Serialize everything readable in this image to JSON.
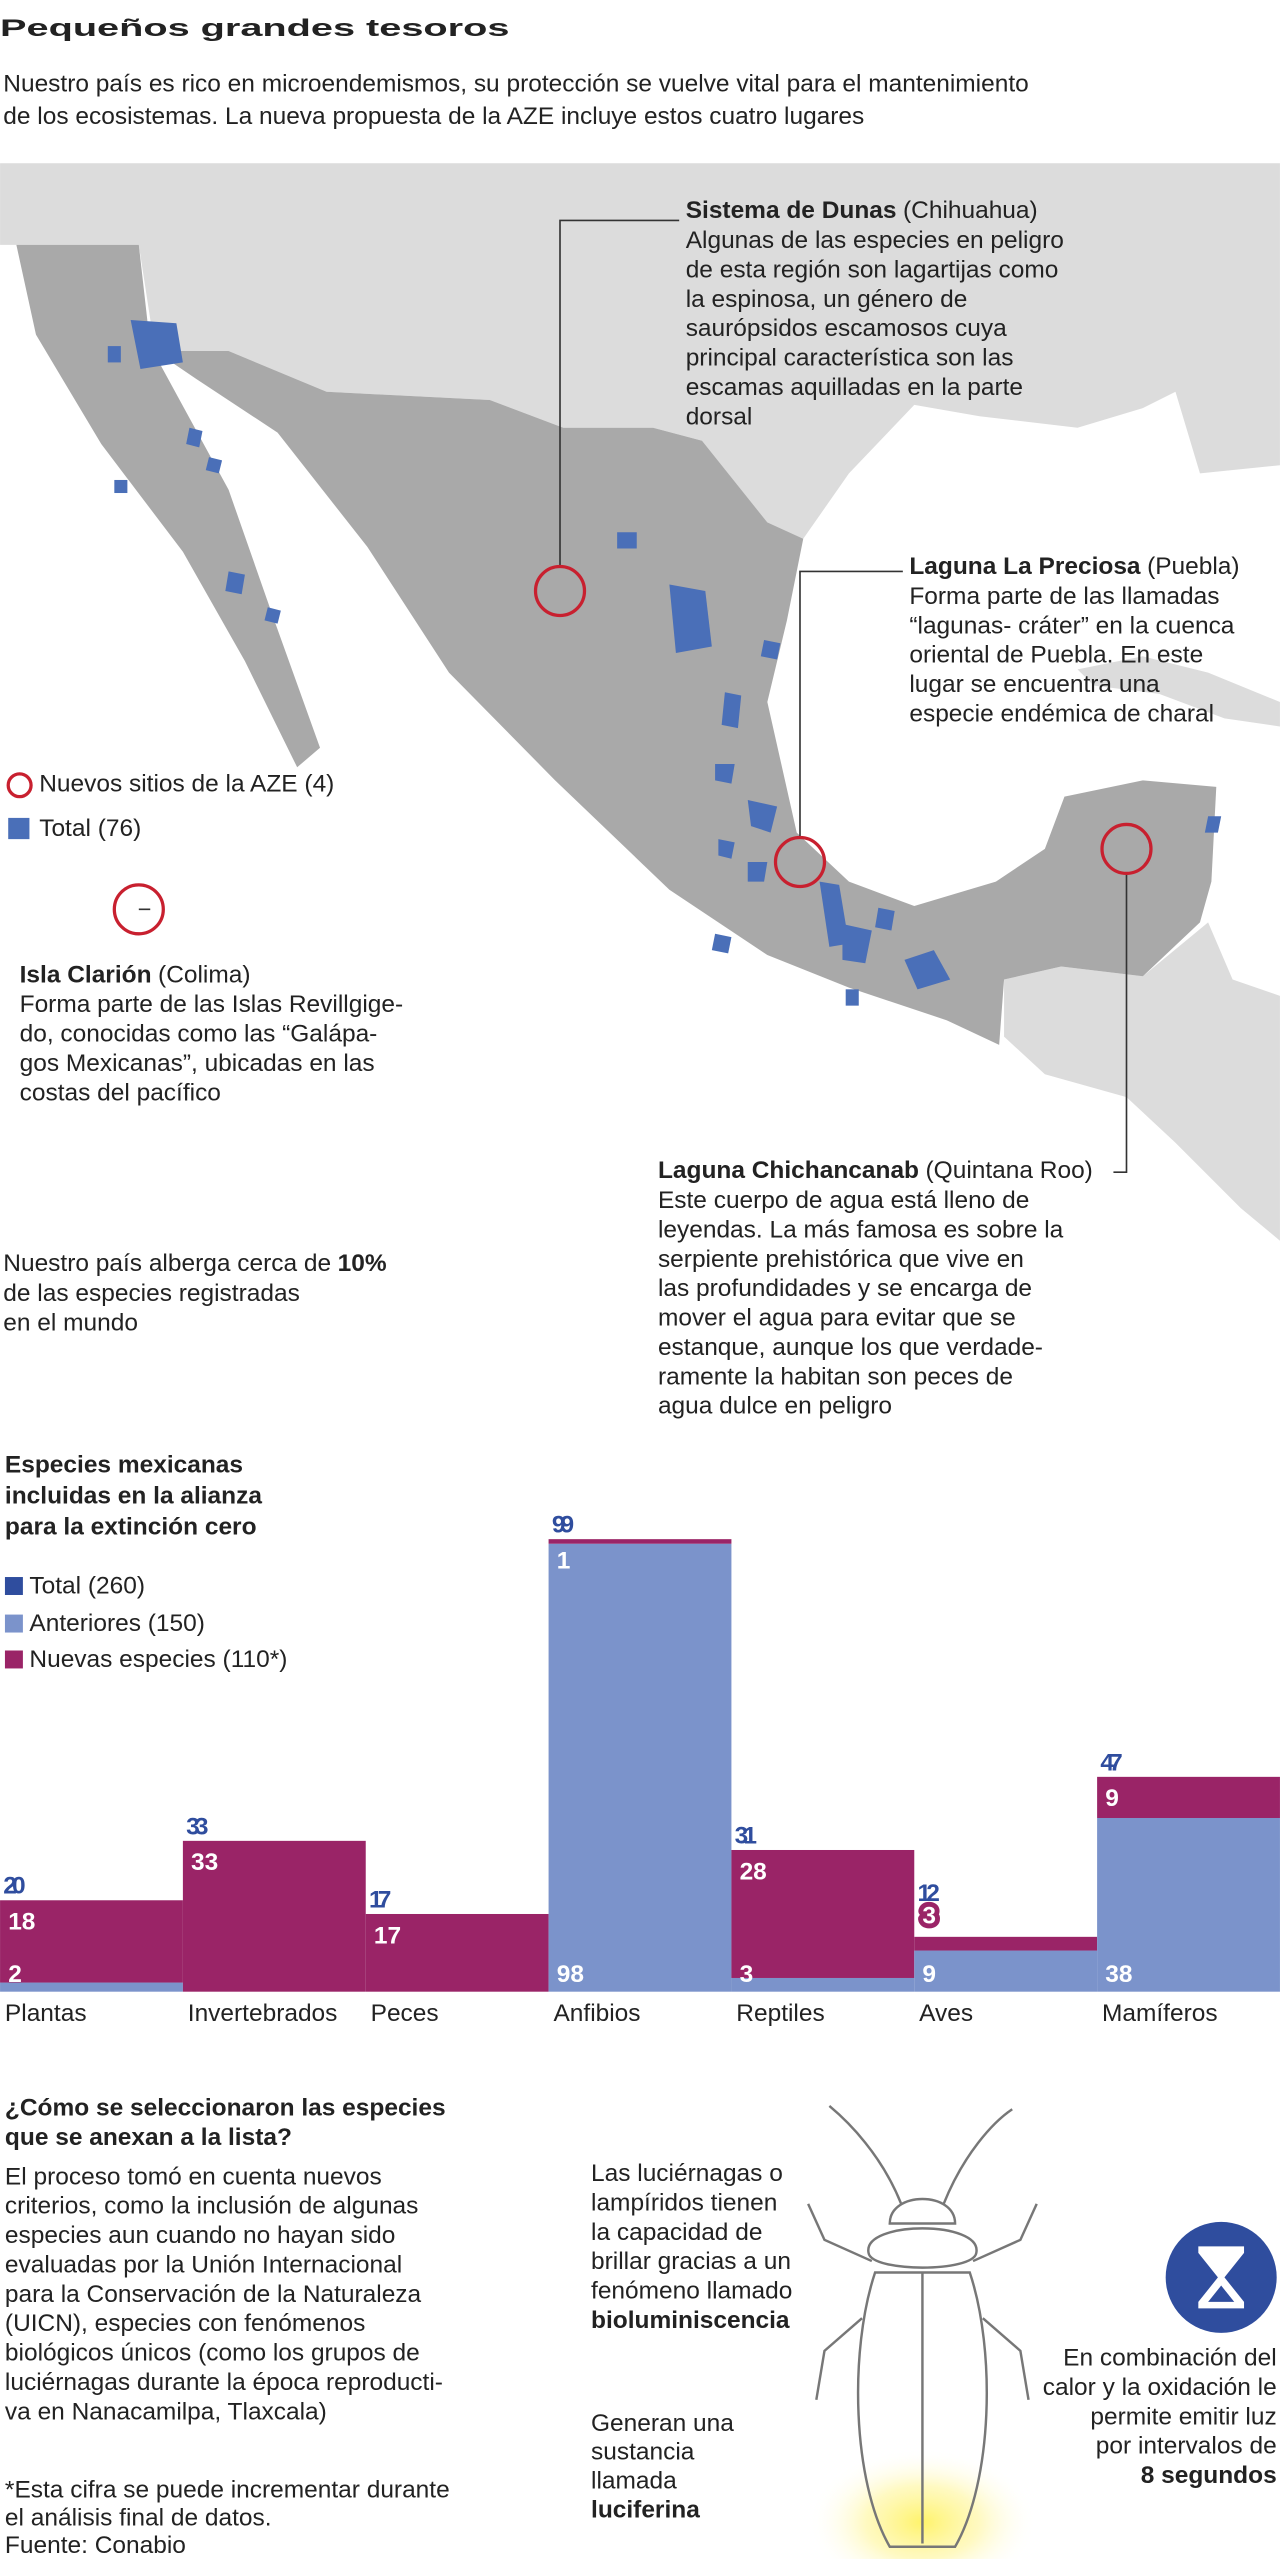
{
  "header": {
    "title": "Pequeños grandes tesoros",
    "subtitle": [
      "Nuestro país es rico en microendemismos, su protección se vuelve vital para el mantenimiento",
      "de los ecosistemas. La nueva propuesta de la AZE incluye estos cuatro lugares"
    ]
  },
  "map": {
    "legend": {
      "new_sites": "Nuevos sitios de la AZE (4)",
      "total": "Total (76)"
    },
    "sites": [
      {
        "name": "Sistema de Dunas",
        "state": "(Chihuahua)",
        "text": [
          "Algunas de las especies en peligro",
          "de esta región son lagartijas como",
          "la espinosa, un género de",
          "saurópsidos escamosos cuya",
          "principal característica son las",
          "escamas aquilladas en la parte",
          "dorsal"
        ]
      },
      {
        "name": "Laguna La Preciosa",
        "state": "(Puebla)",
        "text": [
          "Forma parte de las llamadas",
          "“lagunas- cráter” en la cuenca",
          "oriental de Puebla. En este",
          "lugar se encuentra una",
          "especie endémica de charal"
        ]
      },
      {
        "name": "Isla Clarión",
        "state": "(Colima)",
        "text": [
          "Forma parte de las Islas Revillgige-",
          "do, conocidas como las “Galápa-",
          "gos Mexicanas”, ubicadas en las",
          "costas del pacífico"
        ]
      },
      {
        "name": "Laguna Chichancanab",
        "state": "(Quintana Roo)",
        "text": [
          "Este cuerpo de agua está lleno de",
          "leyendas. La más famosa es sobre la",
          "serpiente prehistórica que vive en",
          "las profundidades y se encarga de",
          "mover el agua para evitar que se",
          "estanque, aunque los que verdade-",
          "ramente la habitan son peces de",
          "agua dulce en peligro"
        ]
      }
    ]
  },
  "note": {
    "lines": [
      "Nuestro país alberga cerca de",
      "de las especies registradas",
      "en el mundo"
    ],
    "highlight": "10%"
  },
  "chart_data": {
    "type": "bar",
    "stacked": true,
    "title": [
      "Especies mexicanas",
      "incluidas en la alianza",
      "para la extinción cero"
    ],
    "categories": [
      "Plantas",
      "Invertebrados",
      "Peces",
      "Anfibios",
      "Reptiles",
      "Aves",
      "Mamíferos"
    ],
    "totals": {
      "name": "Total (260)",
      "color": "#2f4d9e",
      "values": [
        20,
        33,
        17,
        99,
        31,
        12,
        47
      ]
    },
    "series": [
      {
        "name": "Anteriores (150)",
        "color": "#7b93cb",
        "values": [
          2,
          0,
          0,
          98,
          3,
          9,
          38
        ],
        "value_labels": [
          "2",
          null,
          null,
          "98",
          "3",
          "9",
          "38"
        ]
      },
      {
        "name": "Nuevas especies (110*)",
        "color": "#9a2467",
        "values": [
          18,
          33,
          17,
          1,
          28,
          3,
          9
        ]
      }
    ],
    "ylim": [
      0,
      100
    ]
  },
  "selection": {
    "title": [
      "¿Cómo se seleccionaron las especies",
      "que se anexan a la lista?"
    ],
    "text": [
      "El proceso tomó en cuenta nuevos",
      "criterios, como la inclusión de algunas",
      "especies aun cuando no hayan sido",
      "evaluadas por la Unión Internacional",
      "para la Conservación de la Naturaleza",
      "(UICN), especies con fenómenos",
      "biológicos únicos (como los grupos de",
      "luciérnagas durante la época reproducti-",
      "va en Nanacamilpa, Tlaxcala)"
    ]
  },
  "firefly": {
    "text1": [
      "Las luciérnagas o",
      "lampíridos tienen",
      "la capacidad de",
      "brillar gracias a un",
      "fenómeno llamado"
    ],
    "term1": "bioluminiscencia",
    "text2": [
      "Generan una",
      "sustancia",
      "llamada"
    ],
    "term2": "luciferina",
    "text3": [
      "En combinación del",
      "calor y la oxidación le",
      "permite emitir luz",
      "por intervalos de"
    ],
    "term3": "8 segundos"
  },
  "footnote": [
    "*Esta cifra se puede incrementar durante",
    "el análisis final de datos."
  ],
  "source": "Fuente: Conabio"
}
